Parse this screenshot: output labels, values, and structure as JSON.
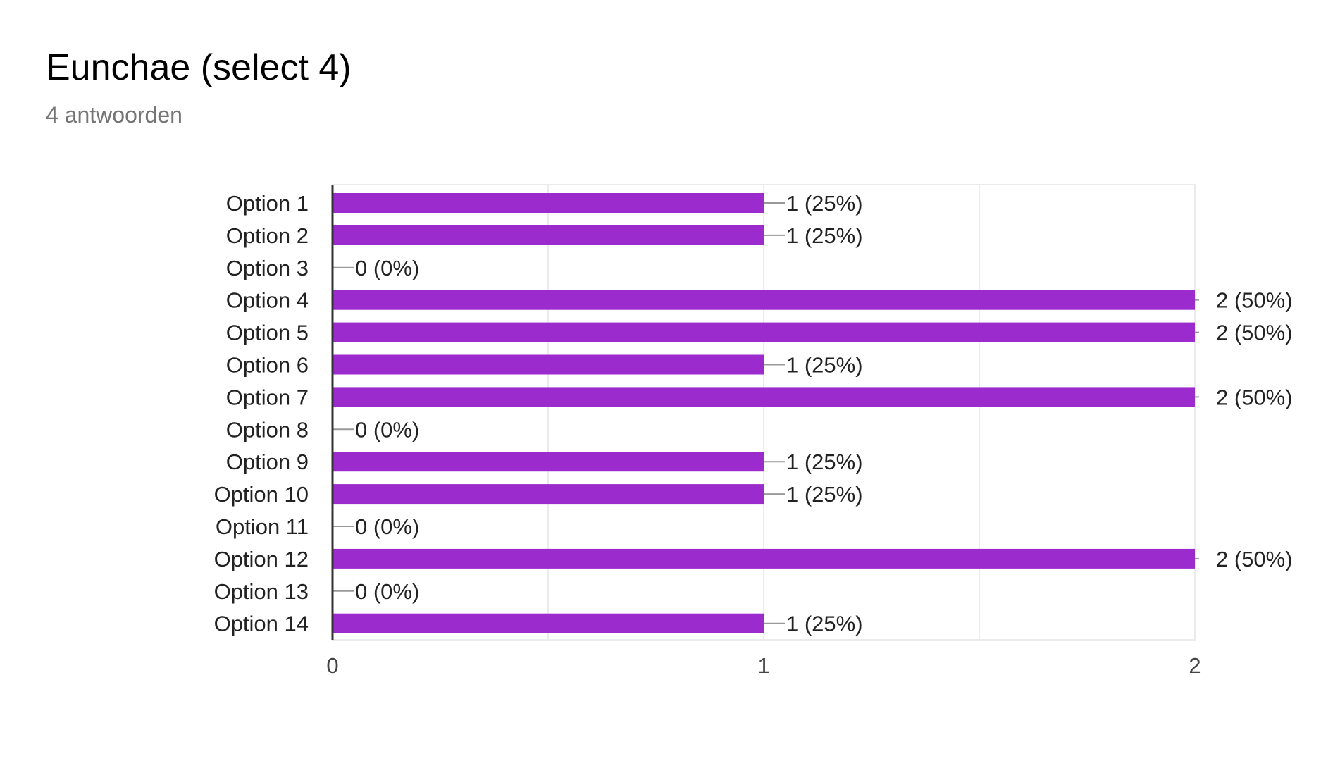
{
  "header": {
    "title": "Eunchae (select 4)",
    "subtitle": "4 antwoorden"
  },
  "colors": {
    "bar": "#9c2bce",
    "axis": "#333333",
    "grid": "#ebebeb",
    "leader": "#999999",
    "text": "#222222"
  },
  "chart_data": {
    "type": "bar",
    "orientation": "horizontal",
    "title": "",
    "xlabel": "",
    "ylabel": "",
    "categories": [
      "Option 1",
      "Option 2",
      "Option 3",
      "Option 4",
      "Option 5",
      "Option 6",
      "Option 7",
      "Option 8",
      "Option 9",
      "Option 10",
      "Option 11",
      "Option 12",
      "Option 13",
      "Option 14"
    ],
    "values": [
      1,
      1,
      0,
      2,
      2,
      1,
      2,
      0,
      1,
      1,
      0,
      2,
      0,
      1
    ],
    "data_labels": [
      "1 (25%)",
      "1 (25%)",
      "0 (0%)",
      "2 (50%)",
      "2 (50%)",
      "1 (25%)",
      "2 (50%)",
      "0 (0%)",
      "1 (25%)",
      "1 (25%)",
      "0 (0%)",
      "2 (50%)",
      "0 (0%)",
      "1 (25%)"
    ],
    "xlim": [
      0,
      2
    ],
    "x_ticks": [
      "0",
      "1",
      "2"
    ],
    "grid": true,
    "legend": "none"
  }
}
